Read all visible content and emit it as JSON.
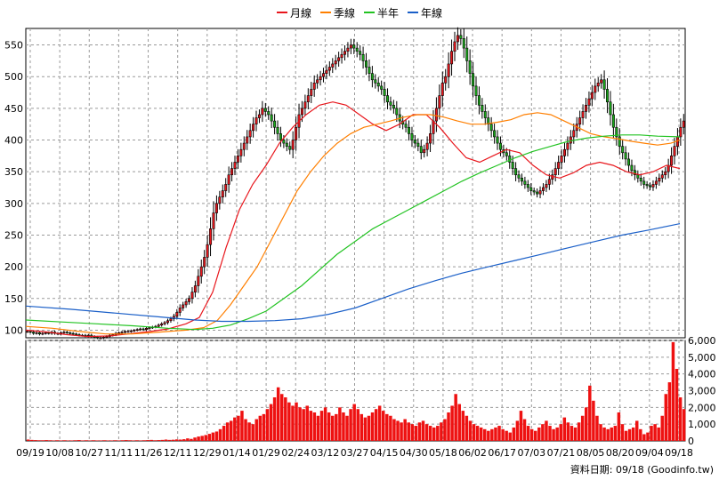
{
  "legend": [
    {
      "label": "月線",
      "color": "#e8161c"
    },
    {
      "label": "季線",
      "color": "#ff7f00"
    },
    {
      "label": "半年",
      "color": "#22c322"
    },
    {
      "label": "年線",
      "color": "#1a5fc8"
    }
  ],
  "footer": {
    "text": "資料日期: 09/18  (Goodinfo.tw)"
  },
  "chart_data": [
    {
      "type": "candlestick",
      "panel": "price",
      "y_ticks": [
        "100",
        "150",
        "200",
        "250",
        "300",
        "350",
        "400",
        "450",
        "500",
        "550"
      ],
      "ylim": [
        88,
        576
      ],
      "x_tick_labels": [
        "09/19",
        "10/08",
        "10/27",
        "11/11",
        "11/26",
        "12/11",
        "12/29",
        "01/14",
        "01/29",
        "02/24",
        "03/12",
        "03/27",
        "04/15",
        "04/30",
        "05/18",
        "06/02",
        "06/17",
        "07/03",
        "07/21",
        "08/05",
        "08/20",
        "09/04",
        "09/18"
      ],
      "close_approx": [
        98,
        97,
        95,
        96,
        94,
        95,
        96,
        95,
        97,
        95,
        94,
        96,
        97,
        96,
        95,
        94,
        93,
        92,
        92,
        91,
        92,
        90,
        89,
        88,
        88,
        89,
        90,
        92,
        93,
        95,
        96,
        97,
        98,
        98,
        99,
        100,
        101,
        102,
        101,
        103,
        104,
        105,
        106,
        108,
        110,
        112,
        115,
        118,
        122,
        128,
        135,
        140,
        145,
        150,
        160,
        170,
        185,
        200,
        215,
        235,
        260,
        285,
        300,
        310,
        320,
        330,
        345,
        355,
        365,
        375,
        385,
        395,
        405,
        415,
        425,
        435,
        440,
        450,
        445,
        440,
        430,
        420,
        410,
        400,
        395,
        390,
        385,
        400,
        420,
        440,
        450,
        460,
        470,
        480,
        490,
        495,
        500,
        505,
        510,
        515,
        520,
        525,
        530,
        535,
        540,
        545,
        550,
        545,
        540,
        535,
        525,
        515,
        505,
        495,
        490,
        485,
        480,
        470,
        460,
        455,
        450,
        440,
        430,
        425,
        420,
        410,
        400,
        395,
        390,
        380,
        385,
        395,
        410,
        430,
        450,
        470,
        490,
        500,
        520,
        540,
        555,
        565,
        560,
        545,
        525,
        505,
        485,
        470,
        455,
        445,
        435,
        425,
        415,
        405,
        395,
        385,
        380,
        375,
        365,
        355,
        345,
        340,
        335,
        330,
        325,
        320,
        318,
        315,
        320,
        325,
        330,
        338,
        345,
        355,
        365,
        375,
        385,
        395,
        405,
        415,
        425,
        435,
        445,
        455,
        465,
        475,
        485,
        490,
        495,
        480,
        460,
        440,
        420,
        405,
        390,
        380,
        370,
        360,
        352,
        345,
        340,
        335,
        330,
        328,
        326,
        330,
        335,
        340,
        345,
        350,
        360,
        375,
        390,
        405,
        420,
        430
      ]
    },
    {
      "type": "line",
      "panel": "price",
      "series": [
        {
          "name": "月線",
          "color": "#e8161c",
          "points": [
            [
              0,
              100
            ],
            [
              25,
              97
            ],
            [
              45,
              93
            ],
            [
              70,
              90
            ],
            [
              95,
              91
            ],
            [
              115,
              94
            ],
            [
              140,
              98
            ],
            [
              160,
              102
            ],
            [
              180,
              110
            ],
            [
              195,
              120
            ],
            [
              210,
              160
            ],
            [
              225,
              230
            ],
            [
              240,
              290
            ],
            [
              255,
              330
            ],
            [
              270,
              360
            ],
            [
              285,
              395
            ],
            [
              300,
              420
            ],
            [
              315,
              440
            ],
            [
              330,
              455
            ],
            [
              345,
              460
            ],
            [
              360,
              455
            ],
            [
              375,
              440
            ],
            [
              390,
              425
            ],
            [
              405,
              415
            ],
            [
              420,
              425
            ],
            [
              435,
              440
            ],
            [
              450,
              440
            ],
            [
              465,
              420
            ],
            [
              480,
              395
            ],
            [
              495,
              372
            ],
            [
              510,
              365
            ],
            [
              525,
              375
            ],
            [
              540,
              385
            ],
            [
              555,
              380
            ],
            [
              570,
              360
            ],
            [
              585,
              345
            ],
            [
              600,
              340
            ],
            [
              615,
              348
            ],
            [
              630,
              360
            ],
            [
              645,
              365
            ],
            [
              660,
              360
            ],
            [
              675,
              350
            ],
            [
              690,
              345
            ],
            [
              705,
              350
            ],
            [
              720,
              360
            ],
            [
              735,
              355
            ]
          ]
        },
        {
          "name": "季線",
          "color": "#ff7f00",
          "points": [
            [
              0,
              106
            ],
            [
              30,
              103
            ],
            [
              60,
              98
            ],
            [
              90,
              94
            ],
            [
              120,
              94
            ],
            [
              150,
              97
            ],
            [
              180,
              100
            ],
            [
              200,
              104
            ],
            [
              215,
              115
            ],
            [
              230,
              140
            ],
            [
              245,
              170
            ],
            [
              260,
              200
            ],
            [
              275,
              240
            ],
            [
              290,
              280
            ],
            [
              305,
              320
            ],
            [
              320,
              350
            ],
            [
              335,
              375
            ],
            [
              350,
              395
            ],
            [
              365,
              410
            ],
            [
              380,
              420
            ],
            [
              395,
              425
            ],
            [
              410,
              430
            ],
            [
              425,
              436
            ],
            [
              440,
              440
            ],
            [
              455,
              440
            ],
            [
              470,
              436
            ],
            [
              485,
              430
            ],
            [
              500,
              425
            ],
            [
              515,
              425
            ],
            [
              530,
              428
            ],
            [
              545,
              432
            ],
            [
              560,
              440
            ],
            [
              575,
              443
            ],
            [
              590,
              440
            ],
            [
              605,
              430
            ],
            [
              620,
              420
            ],
            [
              635,
              410
            ],
            [
              650,
              405
            ],
            [
              665,
              402
            ],
            [
              680,
              398
            ],
            [
              695,
              395
            ],
            [
              710,
              392
            ],
            [
              725,
              395
            ],
            [
              735,
              400
            ]
          ]
        },
        {
          "name": "半年",
          "color": "#22c322",
          "points": [
            [
              0,
              116
            ],
            [
              40,
              113
            ],
            [
              80,
              110
            ],
            [
              120,
              107
            ],
            [
              160,
              103
            ],
            [
              190,
              101
            ],
            [
              210,
              103
            ],
            [
              230,
              108
            ],
            [
              250,
              118
            ],
            [
              270,
              130
            ],
            [
              290,
              150
            ],
            [
              310,
              170
            ],
            [
              330,
              195
            ],
            [
              350,
              220
            ],
            [
              370,
              240
            ],
            [
              390,
              260
            ],
            [
              410,
              275
            ],
            [
              430,
              290
            ],
            [
              450,
              305
            ],
            [
              470,
              320
            ],
            [
              490,
              335
            ],
            [
              510,
              348
            ],
            [
              530,
              360
            ],
            [
              550,
              372
            ],
            [
              570,
              382
            ],
            [
              590,
              390
            ],
            [
              610,
              398
            ],
            [
              630,
              403
            ],
            [
              650,
              406
            ],
            [
              670,
              408
            ],
            [
              690,
              408
            ],
            [
              710,
              406
            ],
            [
              735,
              405
            ]
          ]
        },
        {
          "name": "年線",
          "color": "#1a5fc8",
          "points": [
            [
              0,
              138
            ],
            [
              50,
              133
            ],
            [
              100,
              127
            ],
            [
              150,
              121
            ],
            [
              190,
              116
            ],
            [
              220,
              114
            ],
            [
              250,
              114
            ],
            [
              280,
              115
            ],
            [
              310,
              118
            ],
            [
              340,
              125
            ],
            [
              370,
              135
            ],
            [
              400,
              150
            ],
            [
              430,
              165
            ],
            [
              460,
              178
            ],
            [
              490,
              190
            ],
            [
              520,
              200
            ],
            [
              550,
              210
            ],
            [
              580,
              220
            ],
            [
              610,
              230
            ],
            [
              640,
              240
            ],
            [
              670,
              250
            ],
            [
              700,
              258
            ],
            [
              735,
              268
            ]
          ]
        }
      ]
    },
    {
      "type": "bar",
      "panel": "volume",
      "y_ticks": [
        "0",
        "1,000",
        "2,000",
        "3,000",
        "4,000",
        "5,000",
        "6,000"
      ],
      "ylim": [
        0,
        6000
      ],
      "values_approx": [
        80,
        60,
        50,
        40,
        40,
        50,
        40,
        30,
        40,
        30,
        40,
        30,
        30,
        40,
        50,
        30,
        40,
        30,
        40,
        30,
        30,
        40,
        30,
        30,
        40,
        30,
        40,
        50,
        40,
        30,
        40,
        30,
        40,
        50,
        60,
        40,
        50,
        60,
        80,
        60,
        70,
        90,
        80,
        100,
        150,
        120,
        200,
        260,
        300,
        350,
        420,
        500,
        560,
        700,
        900,
        1100,
        1200,
        1400,
        1500,
        1800,
        1300,
        1100,
        1000,
        1300,
        1500,
        1600,
        1900,
        2200,
        2600,
        3200,
        2800,
        2600,
        2300,
        2100,
        2300,
        2000,
        1900,
        2100,
        1800,
        1700,
        1500,
        1800,
        2000,
        1700,
        1500,
        1600,
        2000,
        1700,
        1500,
        1900,
        2200,
        1900,
        1600,
        1400,
        1500,
        1700,
        1900,
        2100,
        1800,
        1600,
        1500,
        1300,
        1200,
        1100,
        1300,
        1100,
        1000,
        900,
        1100,
        1200,
        1000,
        900,
        800,
        900,
        1100,
        1300,
        1700,
        2100,
        2800,
        2200,
        1800,
        1500,
        1200,
        1000,
        900,
        800,
        700,
        600,
        700,
        800,
        900,
        700,
        600,
        500,
        800,
        1200,
        1800,
        1300,
        900,
        700,
        600,
        800,
        1000,
        1200,
        900,
        700,
        800,
        1000,
        1400,
        1100,
        900,
        800,
        1100,
        1500,
        2000,
        3300,
        2400,
        1500,
        1000,
        800,
        700,
        800,
        900,
        1700,
        1000,
        600,
        700,
        800,
        1200,
        700,
        400,
        500,
        900,
        1000,
        800,
        1500,
        2800,
        3500,
        5900,
        4300,
        2600,
        1900
      ]
    }
  ]
}
